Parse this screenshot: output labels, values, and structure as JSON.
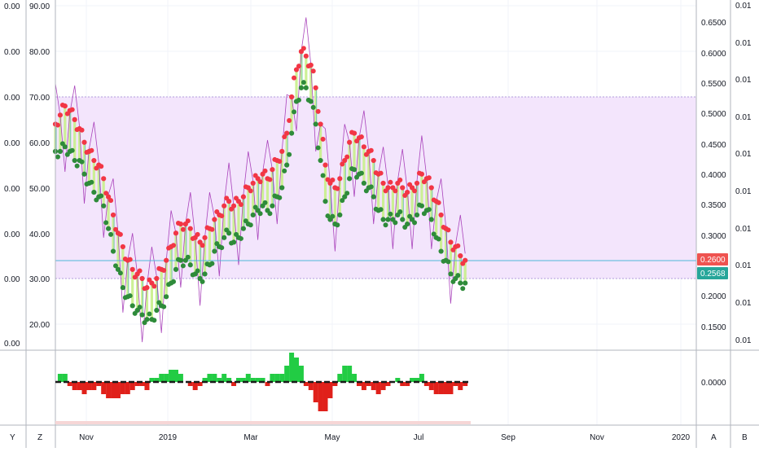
{
  "colors": {
    "background": "#ffffff",
    "band": "#f3e5fc",
    "band_line": "#b39ddb",
    "grid": "#f0f3fa",
    "axis_line": "#b2b5be",
    "red_dots": "#f23645",
    "green_dots": "#2e8b3a",
    "candle_fill": "#c8f08a",
    "candle_wick": "#1e9ad6",
    "thin_line": "#9c27b0",
    "hline": "#4fb6d8",
    "badge_red": "#ef5350",
    "badge_teal": "#26a69a",
    "hist_green": "#22cc44",
    "hist_red": "#e0201a",
    "zero_line": "#1a1a1a"
  },
  "left_axis_far": {
    "labels": [
      "0.00",
      "0.00",
      "0.00",
      "0.00",
      "0.00",
      "0.00",
      "0.00",
      "0.00"
    ]
  },
  "left_axis": {
    "labels": [
      "90.00",
      "80.00",
      "70.00",
      "60.00",
      "50.00",
      "40.00",
      "30.00",
      "20.00"
    ]
  },
  "right_axis": {
    "labels": [
      "0.6500",
      "0.6000",
      "0.5500",
      "0.5000",
      "0.4500",
      "0.4000",
      "0.3500",
      "0.3000",
      "0.2500",
      "0.2000",
      "0.1500"
    ]
  },
  "right_axis_far": {
    "labels": [
      "0.01",
      "0.01",
      "0.01",
      "0.01",
      "0.01",
      "0.01",
      "0.01",
      "0.01",
      "0.01",
      "0.01"
    ]
  },
  "badges": {
    "upper": "0.2600",
    "lower": "0.2568"
  },
  "oscillator_axis": {
    "label": "0.0000"
  },
  "time_axis": {
    "labels": [
      "Nov",
      "2019",
      "Mar",
      "May",
      "Jul",
      "Sep",
      "Nov",
      "2020"
    ]
  },
  "toolbar": {
    "left_far": "Y",
    "left": "Z",
    "right": "A",
    "right_far": "B"
  },
  "chart_data": {
    "type": "scatter",
    "x_range": [
      "2018-09",
      "2020-01"
    ],
    "ylim": [
      15,
      93
    ],
    "band": [
      30,
      70
    ],
    "last_values": [
      0.26,
      0.2568
    ],
    "series": [
      {
        "values": [
          [
            0,
            64
          ],
          [
            4,
            66
          ],
          [
            8,
            68
          ],
          [
            12,
            67
          ],
          [
            16,
            65
          ],
          [
            20,
            63
          ],
          [
            24,
            60
          ],
          [
            28,
            58
          ],
          [
            32,
            56
          ],
          [
            36,
            55
          ],
          [
            40,
            52
          ],
          [
            44,
            48
          ],
          [
            48,
            44
          ],
          [
            52,
            40
          ],
          [
            56,
            37
          ],
          [
            60,
            34
          ],
          [
            64,
            32
          ],
          [
            68,
            31
          ],
          [
            72,
            30
          ],
          [
            76,
            28
          ],
          [
            80,
            29
          ],
          [
            84,
            30
          ],
          [
            88,
            32
          ],
          [
            92,
            34
          ],
          [
            96,
            37
          ],
          [
            100,
            40
          ],
          [
            104,
            42
          ],
          [
            108,
            42
          ],
          [
            112,
            41
          ],
          [
            116,
            39
          ],
          [
            120,
            38
          ],
          [
            124,
            39
          ],
          [
            128,
            41
          ],
          [
            132,
            43
          ],
          [
            136,
            44
          ],
          [
            140,
            46
          ],
          [
            144,
            47
          ],
          [
            148,
            46
          ],
          [
            152,
            47
          ],
          [
            156,
            48
          ],
          [
            160,
            50
          ],
          [
            164,
            51
          ],
          [
            168,
            52
          ],
          [
            172,
            53
          ],
          [
            176,
            52
          ],
          [
            180,
            54
          ],
          [
            184,
            56
          ],
          [
            188,
            58
          ],
          [
            192,
            62
          ],
          [
            196,
            70
          ],
          [
            200,
            76
          ],
          [
            204,
            80
          ],
          [
            208,
            79
          ],
          [
            212,
            77
          ],
          [
            216,
            72
          ],
          [
            220,
            64
          ],
          [
            224,
            55
          ],
          [
            228,
            51
          ],
          [
            232,
            50
          ],
          [
            236,
            52
          ],
          [
            240,
            56
          ],
          [
            244,
            60
          ],
          [
            248,
            62
          ],
          [
            252,
            61
          ],
          [
            256,
            59
          ],
          [
            260,
            58
          ],
          [
            264,
            56
          ],
          [
            268,
            53
          ],
          [
            272,
            51
          ],
          [
            276,
            50
          ],
          [
            280,
            50
          ],
          [
            284,
            51
          ],
          [
            288,
            50
          ],
          [
            292,
            49
          ],
          [
            296,
            50
          ],
          [
            300,
            51
          ],
          [
            304,
            53
          ],
          [
            308,
            52
          ],
          [
            312,
            50
          ],
          [
            316,
            47
          ],
          [
            320,
            44
          ],
          [
            324,
            41
          ],
          [
            328,
            38
          ],
          [
            332,
            37
          ],
          [
            336,
            35
          ],
          [
            340,
            34
          ]
        ]
      },
      {
        "values": [
          [
            0,
            58
          ],
          [
            4,
            58
          ],
          [
            8,
            59
          ],
          [
            12,
            58
          ],
          [
            16,
            56
          ],
          [
            20,
            56
          ],
          [
            24,
            53
          ],
          [
            28,
            51
          ],
          [
            32,
            49
          ],
          [
            36,
            48
          ],
          [
            40,
            46
          ],
          [
            44,
            41
          ],
          [
            48,
            36
          ],
          [
            52,
            32
          ],
          [
            56,
            28
          ],
          [
            60,
            26
          ],
          [
            64,
            24
          ],
          [
            68,
            23
          ],
          [
            72,
            22
          ],
          [
            76,
            21
          ],
          [
            80,
            21
          ],
          [
            84,
            23
          ],
          [
            88,
            24
          ],
          [
            92,
            26
          ],
          [
            96,
            29
          ],
          [
            100,
            32
          ],
          [
            104,
            34
          ],
          [
            108,
            34
          ],
          [
            112,
            33
          ],
          [
            116,
            31
          ],
          [
            120,
            30
          ],
          [
            124,
            31
          ],
          [
            128,
            33
          ],
          [
            132,
            36
          ],
          [
            136,
            37
          ],
          [
            140,
            39
          ],
          [
            144,
            40
          ],
          [
            148,
            38
          ],
          [
            152,
            39
          ],
          [
            156,
            41
          ],
          [
            160,
            42
          ],
          [
            164,
            44
          ],
          [
            168,
            45
          ],
          [
            172,
            46
          ],
          [
            176,
            45
          ],
          [
            180,
            46
          ],
          [
            184,
            48
          ],
          [
            188,
            50
          ],
          [
            192,
            55
          ],
          [
            196,
            62
          ],
          [
            200,
            69
          ],
          [
            204,
            72
          ],
          [
            208,
            72
          ],
          [
            212,
            69
          ],
          [
            216,
            64
          ],
          [
            220,
            56
          ],
          [
            224,
            47
          ],
          [
            228,
            43
          ],
          [
            232,
            42
          ],
          [
            236,
            44
          ],
          [
            240,
            48
          ],
          [
            244,
            52
          ],
          [
            248,
            54
          ],
          [
            252,
            53
          ],
          [
            256,
            51
          ],
          [
            260,
            50
          ],
          [
            264,
            48
          ],
          [
            268,
            45
          ],
          [
            272,
            43
          ],
          [
            276,
            43
          ],
          [
            280,
            43
          ],
          [
            284,
            44
          ],
          [
            288,
            43
          ],
          [
            292,
            42
          ],
          [
            296,
            43
          ],
          [
            300,
            44
          ],
          [
            304,
            46
          ],
          [
            308,
            45
          ],
          [
            312,
            43
          ],
          [
            316,
            39
          ],
          [
            320,
            36
          ],
          [
            324,
            34
          ],
          [
            328,
            31
          ],
          [
            332,
            30
          ],
          [
            336,
            29
          ],
          [
            340,
            29
          ]
        ]
      }
    ]
  }
}
